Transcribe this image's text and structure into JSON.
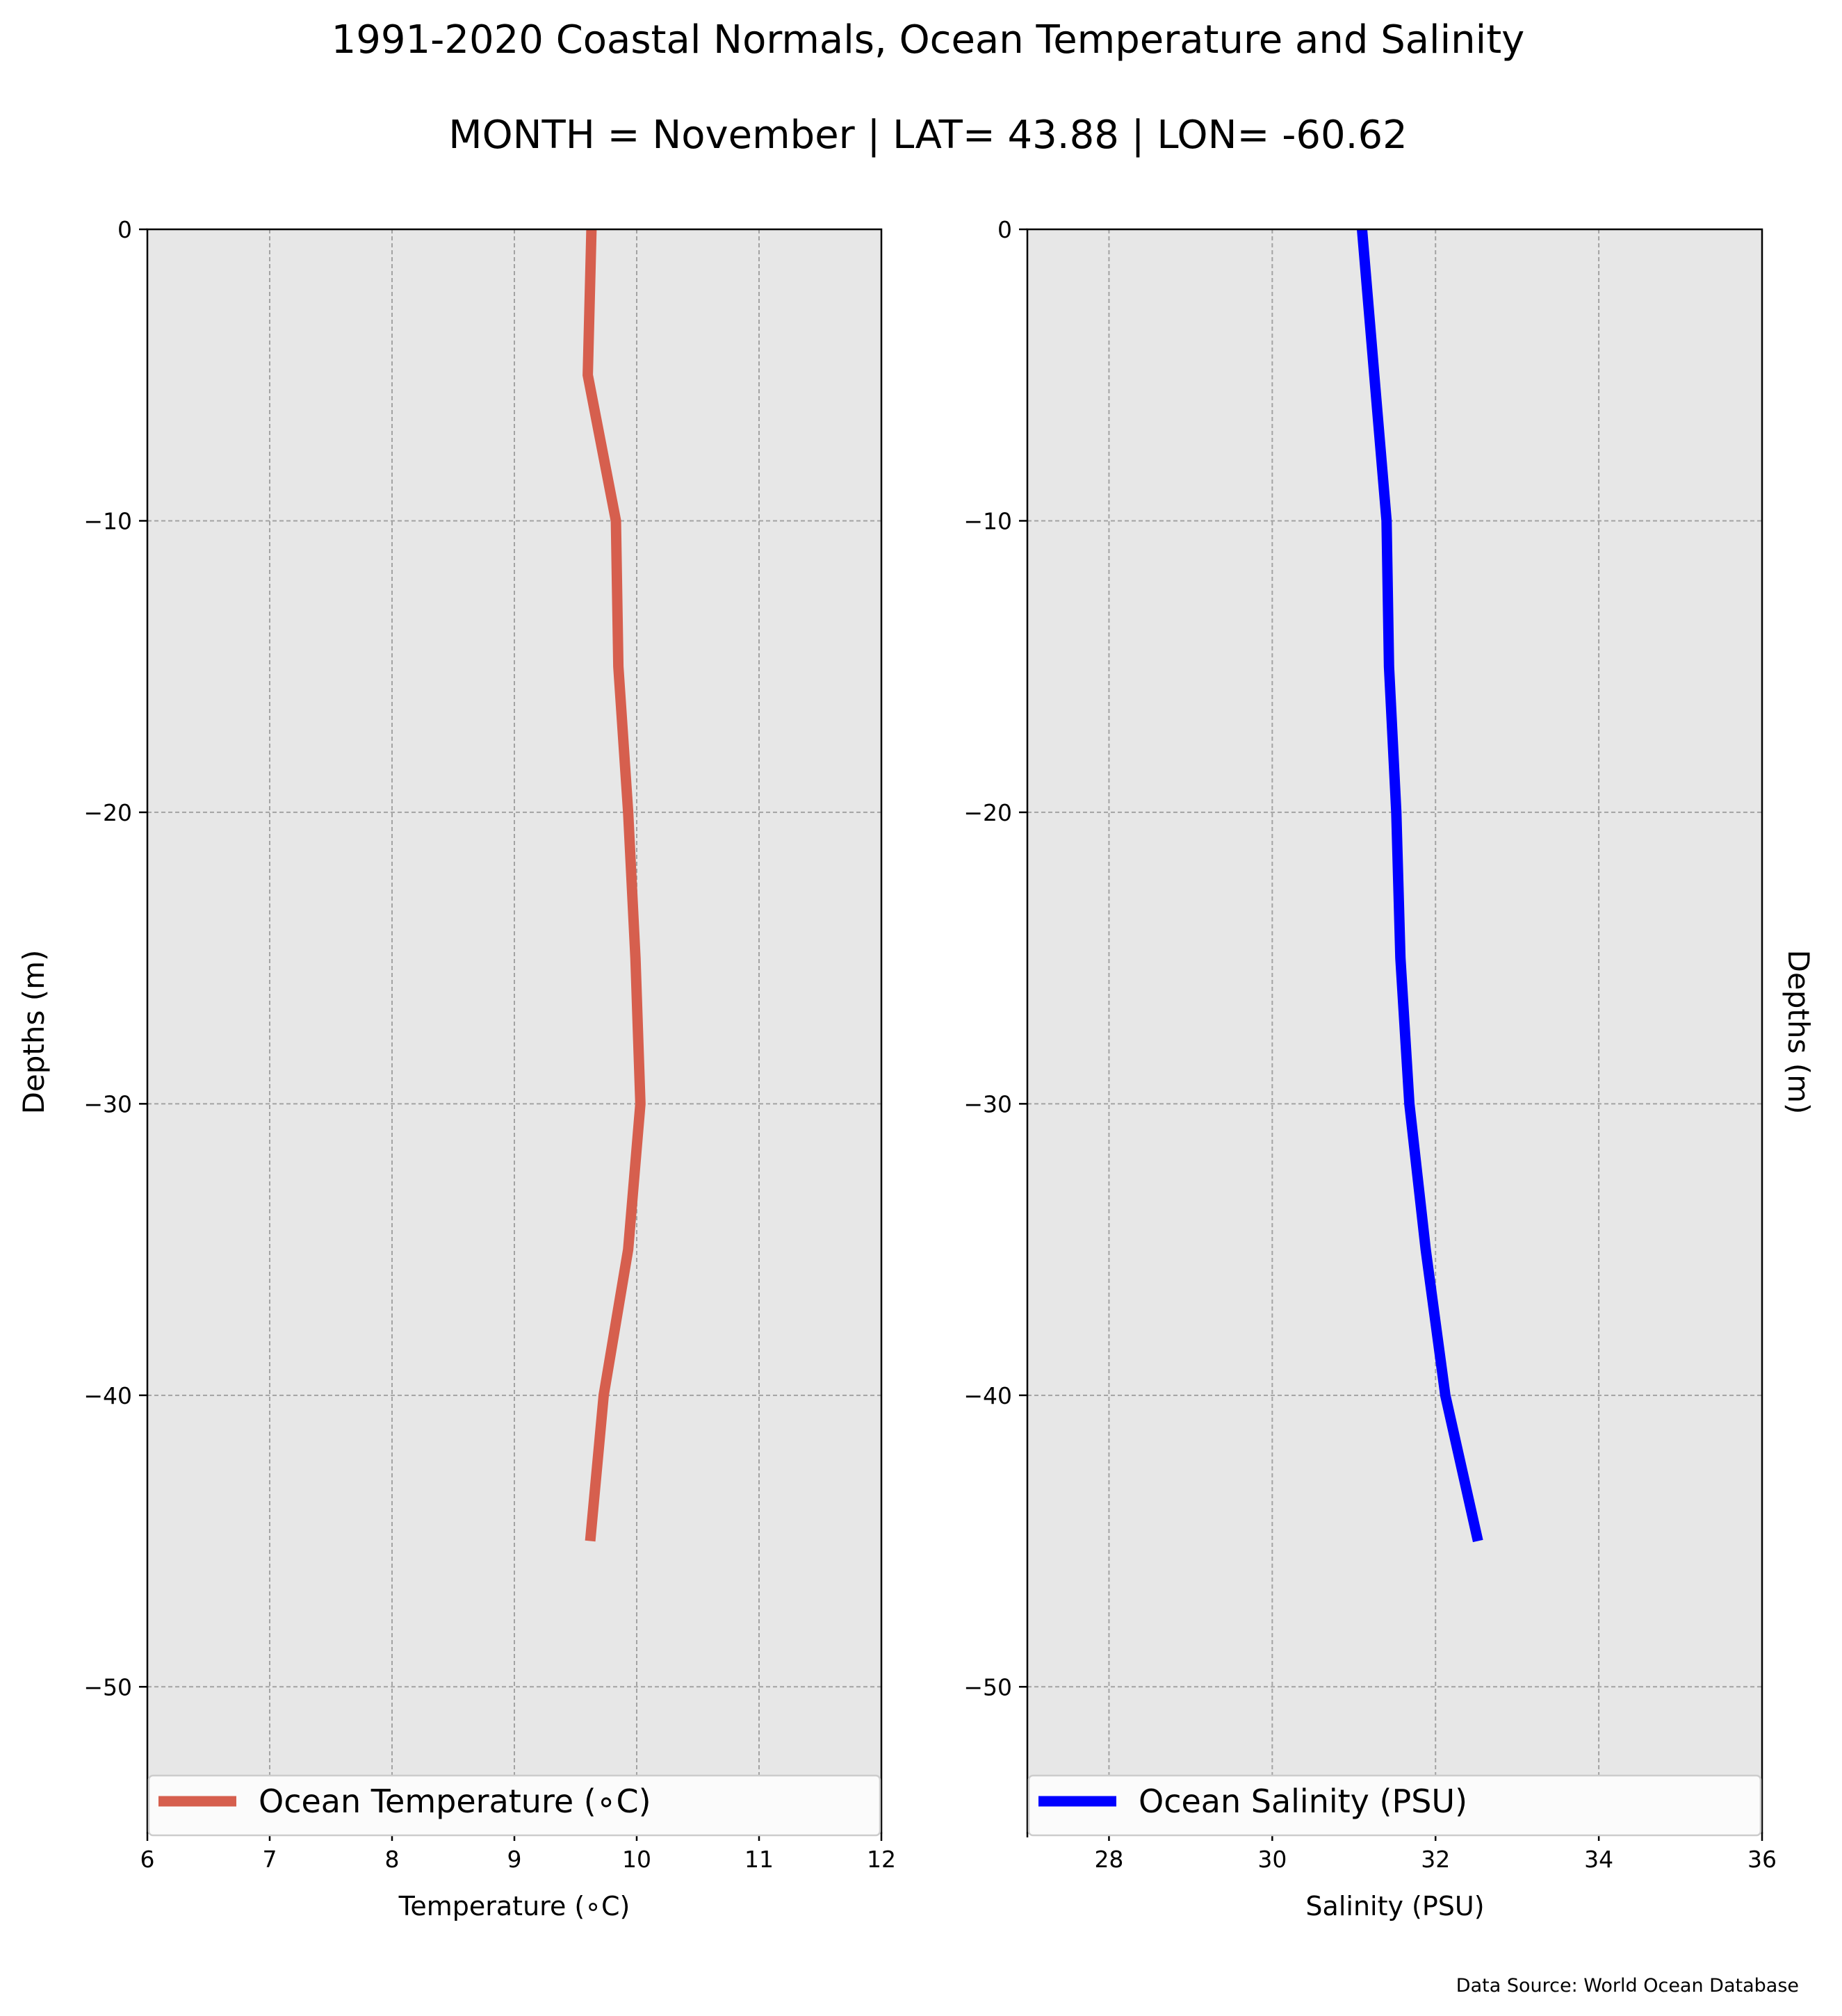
{
  "chart_data": {
    "type": "line",
    "title": "1991-2020 Coastal Normals, Ocean Temperature and Salinity",
    "subtitle": "MONTH = November | LAT= 43.88 | LON= -60.62",
    "source": "Data Source: World Ocean Database",
    "grid": true,
    "depths": [
      0,
      -5,
      -10,
      -15,
      -20,
      -25,
      -30,
      -35,
      -40,
      -45
    ],
    "panels": [
      {
        "xlabel": "Temperature ($^\\circ$C)",
        "xlabel_text": "Temperature (∘C)",
        "ylabel": "Depths (m)",
        "xlim": [
          6,
          12
        ],
        "ylim": [
          -55,
          0
        ],
        "xticks": [
          6,
          7,
          8,
          9,
          10,
          11,
          12
        ],
        "yticks": [
          0,
          -10,
          -20,
          -30,
          -40,
          -50
        ],
        "ytick_labels": [
          "0",
          "−10",
          "−20",
          "−30",
          "−40",
          "−50"
        ],
        "legend": "Ocean Temperature (∘C)",
        "legend_position": "lower center",
        "color": "#d65f4e",
        "series": [
          {
            "name": "Ocean Temperature (∘C)",
            "x": [
              9.63,
              9.6,
              9.83,
              9.85,
              9.93,
              9.99,
              10.03,
              9.93,
              9.73,
              9.62
            ],
            "y": [
              0,
              -5,
              -10,
              -15,
              -20,
              -25,
              -30,
              -35,
              -40,
              -45
            ]
          }
        ]
      },
      {
        "xlabel": "Salinity (PSU)",
        "ylabel": "Depths (m)",
        "xlim": [
          27,
          36
        ],
        "ylim": [
          -55,
          0
        ],
        "xticks": [
          28,
          30,
          32,
          34,
          36
        ],
        "yticks": [
          0,
          -10,
          -20,
          -30,
          -40,
          -50
        ],
        "ytick_labels": [
          "0",
          "−10",
          "−20",
          "−30",
          "−40",
          "−50"
        ],
        "legend": "Ocean Salinity (PSU)",
        "legend_position": "lower center",
        "color": "#0000ff",
        "series": [
          {
            "name": "Ocean Salinity (PSU)",
            "x": [
              31.1,
              31.25,
              31.4,
              31.43,
              31.52,
              31.57,
              31.68,
              31.88,
              32.12,
              32.52
            ],
            "y": [
              0,
              -5,
              -10,
              -15,
              -20,
              -25,
              -30,
              -35,
              -40,
              -45
            ]
          }
        ]
      }
    ]
  }
}
